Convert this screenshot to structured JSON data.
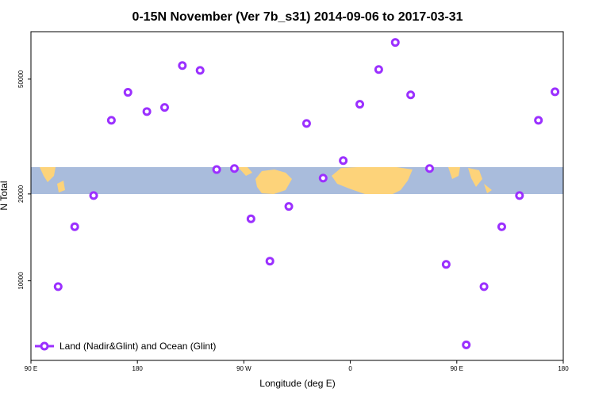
{
  "chart_data": {
    "type": "scatter",
    "title": "0-15N November (Ver 7b_s31)   2014-09-06 to 2017-03-31",
    "x_label": "Longitude (deg E)",
    "y_label": "N Total",
    "xlim": [
      90,
      540
    ],
    "xticks": [
      {
        "value": 90,
        "label": "90 E"
      },
      180,
      {
        "value": 270,
        "label": "90 W"
      },
      {
        "value": 360,
        "label": "0"
      },
      {
        "value": 450,
        "label": "90 E"
      },
      {
        "value": 540,
        "label": "180"
      }
    ],
    "ylim": [
      5300,
      73000
    ],
    "log_y": true,
    "yticks": [
      10000,
      20000,
      50000
    ],
    "legend": "lower left",
    "series": [
      {
        "name": "Land (Nadir&Glint) and Ocean (Glint)",
        "color": "#9b30ff",
        "x": [
          113,
          127,
          143,
          158,
          172,
          188,
          203,
          218,
          233,
          247,
          262,
          276,
          292,
          308,
          323,
          337,
          354,
          368,
          384,
          398,
          411,
          427,
          441,
          458,
          473,
          488,
          503,
          519,
          533
        ],
        "values": [
          9550,
          15400,
          19750,
          36000,
          45000,
          38600,
          39900,
          55700,
          53600,
          24300,
          24500,
          16400,
          11700,
          18100,
          35100,
          22700,
          26100,
          40900,
          54000,
          67000,
          44100,
          24500,
          11400,
          6000,
          9550,
          15400,
          19750,
          36000,
          45200
        ]
      }
    ]
  }
}
